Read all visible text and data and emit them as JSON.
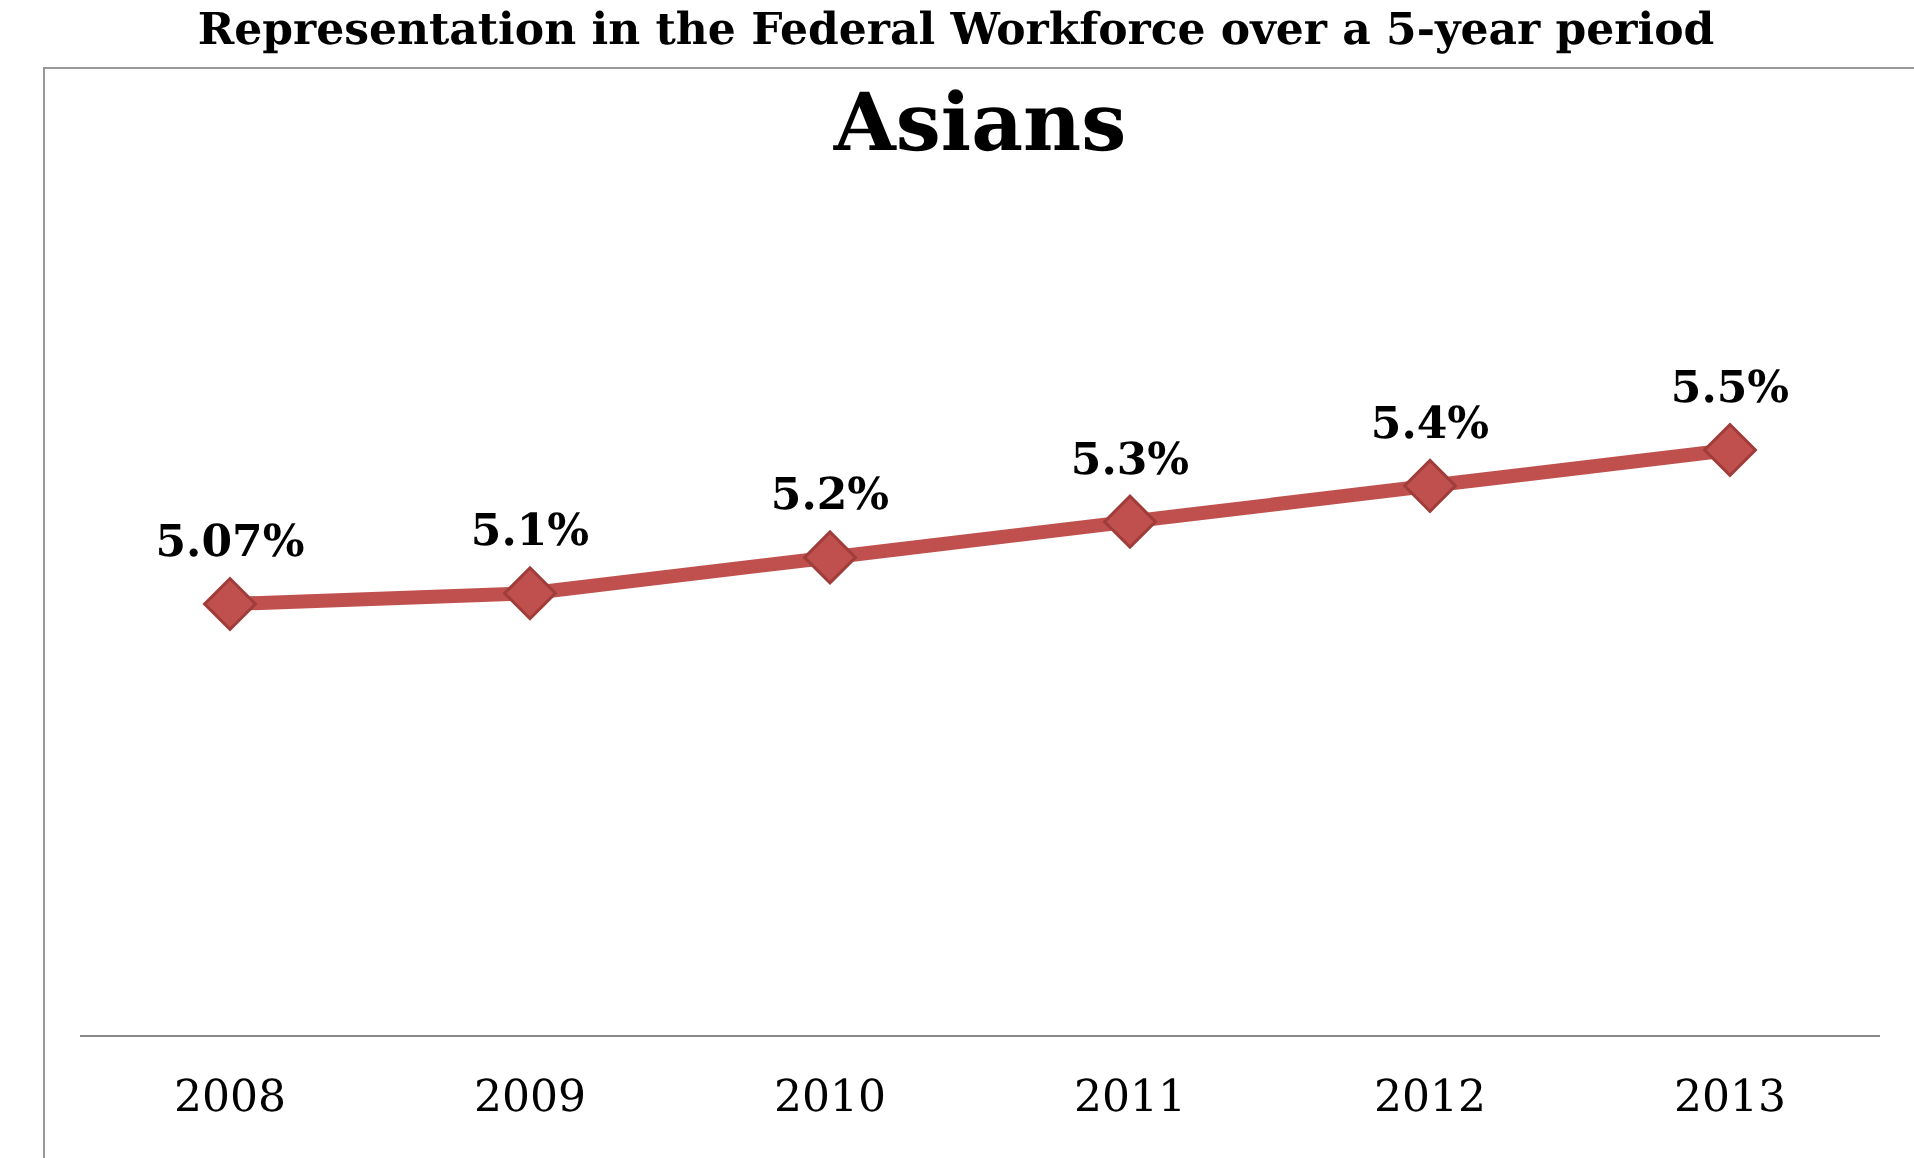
{
  "chart_data": {
    "type": "line",
    "title": "Asians",
    "subtitle": "Representation in the Federal Workforce over a 5-year period",
    "categories": [
      "2008",
      "2009",
      "2010",
      "2011",
      "2012",
      "2013"
    ],
    "series": [
      {
        "color": "#c0504d",
        "values": [
          5.07,
          5.1,
          5.2,
          5.3,
          5.4,
          5.5
        ],
        "value_labels": [
          "5.07%",
          "5.1%",
          "5.2%",
          "5.3%",
          "5.4%",
          "5.5%"
        ]
      }
    ],
    "marker": "diamond",
    "line_style": "solid"
  }
}
